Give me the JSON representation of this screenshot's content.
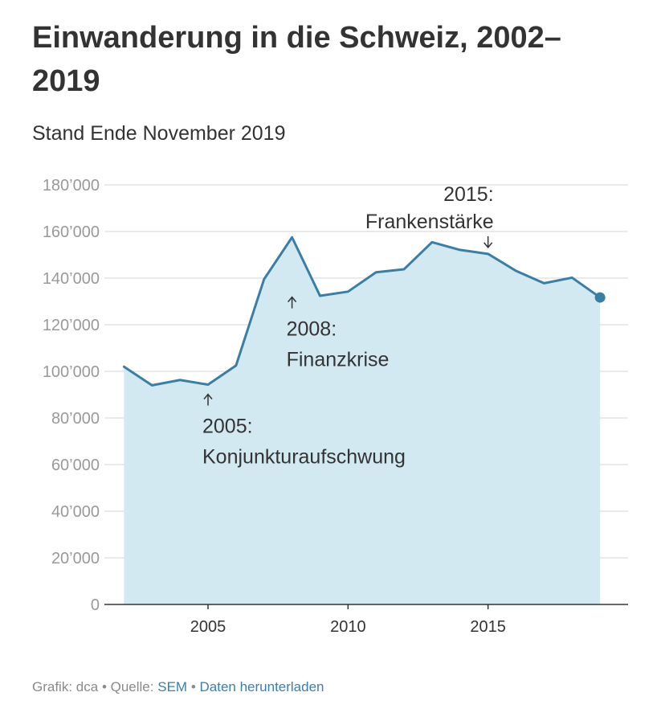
{
  "header": {
    "title": "Einwanderung in die Schweiz, 2002–2019",
    "subtitle": "Stand Ende November 2019"
  },
  "colors": {
    "line": "#3a7fa3",
    "area": "#d2e9f2",
    "grid": "#e4e4e4",
    "axis": "#333333",
    "tick_label": "#999999",
    "link": "#3a7fb0"
  },
  "chart_data": {
    "type": "area",
    "title": "Einwanderung in die Schweiz, 2002–2019",
    "subtitle": "Stand Ende November 2019",
    "xlabel": "",
    "ylabel": "",
    "xlim": [
      2001.3,
      2020.0
    ],
    "ylim": [
      0,
      180000
    ],
    "grid": true,
    "x": [
      2002,
      2003,
      2004,
      2005,
      2006,
      2007,
      2008,
      2009,
      2010,
      2011,
      2012,
      2013,
      2014,
      2015,
      2016,
      2017,
      2018,
      2019
    ],
    "series": [
      {
        "name": "Einwanderung",
        "values": [
          102000,
          94000,
          96300,
          94300,
          102500,
          139500,
          157500,
          132400,
          134200,
          142500,
          143800,
          155400,
          152100,
          150400,
          143100,
          137800,
          140200,
          131700
        ]
      }
    ],
    "x_ticks": [
      {
        "value": 2005,
        "label": "2005"
      },
      {
        "value": 2010,
        "label": "2010"
      },
      {
        "value": 2015,
        "label": "2015"
      }
    ],
    "y_ticks": [
      {
        "value": 0,
        "label": "0"
      },
      {
        "value": 20000,
        "label": "20’000"
      },
      {
        "value": 40000,
        "label": "40’000"
      },
      {
        "value": 60000,
        "label": "60’000"
      },
      {
        "value": 80000,
        "label": "80’000"
      },
      {
        "value": 100000,
        "label": "100’000"
      },
      {
        "value": 120000,
        "label": "120’000"
      },
      {
        "value": 140000,
        "label": "140’000"
      },
      {
        "value": 160000,
        "label": "160’000"
      },
      {
        "value": 180000,
        "label": "180’000"
      }
    ],
    "annotations": [
      {
        "x": 2005,
        "value": 94300,
        "direction": "up",
        "lines": [
          "2005:",
          "Konjunkturaufschwung"
        ],
        "align": "left"
      },
      {
        "x": 2008,
        "value": 136000,
        "direction": "up",
        "lines": [
          "2008:",
          "Finanzkrise"
        ],
        "align": "left"
      },
      {
        "x": 2015,
        "value": 150400,
        "direction": "down",
        "lines": [
          "2015:",
          "Frankenstärke"
        ],
        "align": "right"
      }
    ]
  },
  "footer": {
    "grafik": "Grafik: dca",
    "separator": "•",
    "quelle_label": "Quelle:",
    "quelle_link": "SEM",
    "download_link": "Daten herunterladen"
  }
}
